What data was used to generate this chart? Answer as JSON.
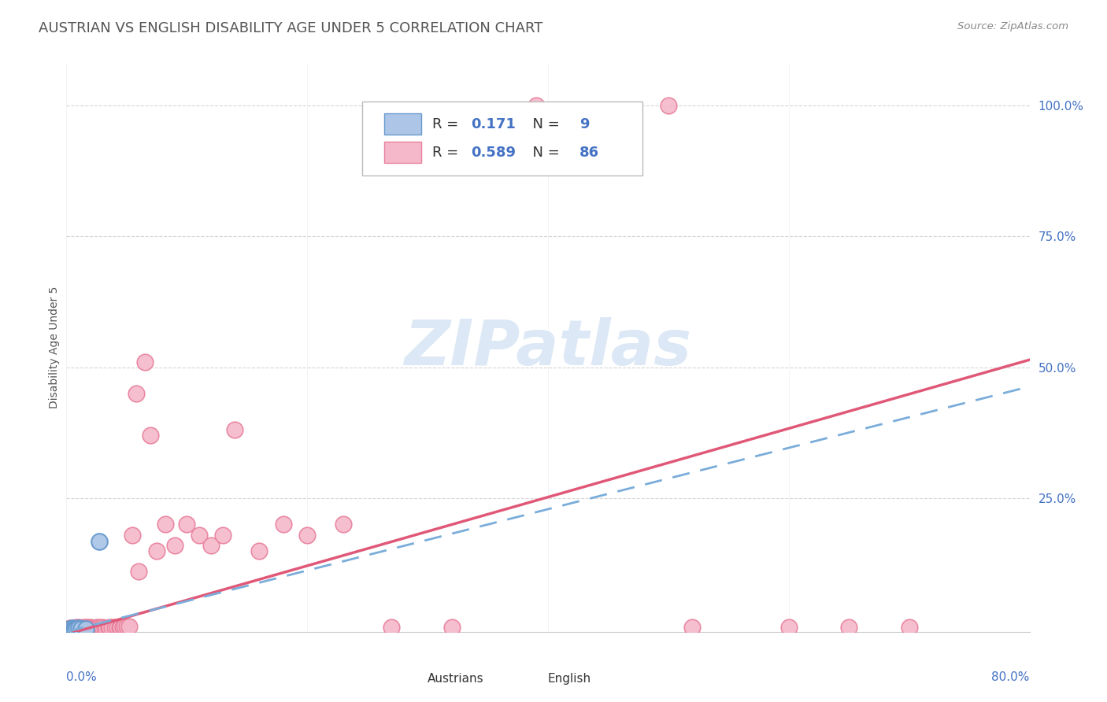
{
  "title": "AUSTRIAN VS ENGLISH DISABILITY AGE UNDER 5 CORRELATION CHART",
  "source": "Source: ZipAtlas.com",
  "ylabel": "Disability Age Under 5",
  "xmin": 0.0,
  "xmax": 0.8,
  "ymin": -0.005,
  "ymax": 1.08,
  "austrians_R": 0.171,
  "austrians_N": 9,
  "english_R": 0.589,
  "english_N": 86,
  "austrians_color": "#adc6e8",
  "austrians_edge_color": "#6699cc",
  "english_color": "#f5b8cb",
  "english_edge_color": "#e8809c",
  "regression_austrians_color": "#7aadda",
  "regression_english_color": "#e05878",
  "grid_color": "#cccccc",
  "watermark_color": "#dce8f5",
  "background_color": "#ffffff",
  "title_color": "#555555",
  "source_color": "#888888",
  "tick_color": "#4472c4",
  "legend_text_color": "#333333",
  "legend_num_color": "#4472c4",
  "title_fontsize": 13,
  "label_fontsize": 10,
  "tick_fontsize": 11,
  "legend_fontsize": 13,
  "austrians_x": [
    0.003,
    0.005,
    0.006,
    0.007,
    0.008,
    0.01,
    0.012,
    0.016,
    0.027
  ],
  "austrians_y": [
    0.001,
    0.002,
    0.001,
    0.001,
    0.001,
    0.002,
    0.001,
    0.001,
    0.168
  ],
  "english_x": [
    0.002,
    0.003,
    0.003,
    0.004,
    0.004,
    0.005,
    0.005,
    0.006,
    0.006,
    0.007,
    0.007,
    0.007,
    0.008,
    0.008,
    0.008,
    0.009,
    0.009,
    0.01,
    0.01,
    0.01,
    0.011,
    0.011,
    0.012,
    0.012,
    0.013,
    0.013,
    0.014,
    0.014,
    0.015,
    0.015,
    0.016,
    0.016,
    0.017,
    0.018,
    0.018,
    0.019,
    0.02,
    0.02,
    0.021,
    0.022,
    0.023,
    0.024,
    0.025,
    0.026,
    0.027,
    0.028,
    0.029,
    0.03,
    0.032,
    0.033,
    0.035,
    0.036,
    0.038,
    0.04,
    0.042,
    0.044,
    0.045,
    0.047,
    0.048,
    0.05,
    0.052,
    0.055,
    0.058,
    0.06,
    0.065,
    0.07,
    0.075,
    0.082,
    0.09,
    0.1,
    0.11,
    0.12,
    0.13,
    0.14,
    0.16,
    0.18,
    0.2,
    0.23,
    0.27,
    0.32,
    0.39,
    0.5,
    0.52,
    0.6,
    0.65,
    0.7
  ],
  "english_y": [
    0.001,
    0.001,
    0.002,
    0.001,
    0.002,
    0.001,
    0.002,
    0.001,
    0.002,
    0.001,
    0.001,
    0.002,
    0.001,
    0.002,
    0.003,
    0.001,
    0.002,
    0.001,
    0.002,
    0.003,
    0.001,
    0.002,
    0.001,
    0.002,
    0.001,
    0.002,
    0.001,
    0.003,
    0.001,
    0.002,
    0.001,
    0.003,
    0.002,
    0.001,
    0.003,
    0.002,
    0.001,
    0.003,
    0.002,
    0.001,
    0.002,
    0.001,
    0.003,
    0.002,
    0.003,
    0.001,
    0.002,
    0.003,
    0.002,
    0.001,
    0.002,
    0.003,
    0.003,
    0.003,
    0.003,
    0.004,
    0.004,
    0.004,
    0.005,
    0.005,
    0.005,
    0.18,
    0.45,
    0.11,
    0.51,
    0.37,
    0.15,
    0.2,
    0.16,
    0.2,
    0.18,
    0.16,
    0.18,
    0.38,
    0.15,
    0.2,
    0.18,
    0.2,
    0.003,
    0.003,
    1.0,
    1.0,
    0.003,
    0.003,
    0.003,
    0.003
  ]
}
